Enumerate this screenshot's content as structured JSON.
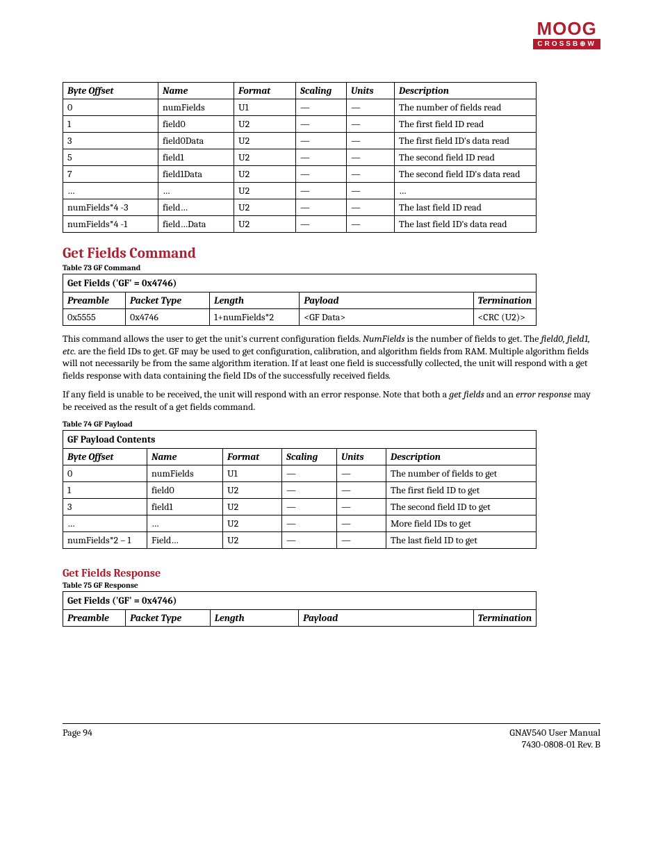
{
  "logo": {
    "top": "MOOG",
    "bottom": "CROSSB⊕W"
  },
  "table1": {
    "headers": [
      "Byte Offset",
      "Name",
      "Format",
      "Scaling",
      "Units",
      "Description"
    ],
    "rows": [
      [
        "0",
        "numFields",
        "U1",
        "—",
        "—",
        "The number of fields read"
      ],
      [
        "1",
        "field0",
        "U2",
        "—",
        "—",
        "The first field ID read"
      ],
      [
        "3",
        "field0Data",
        "U2",
        "—",
        "—",
        "The first field ID's data read"
      ],
      [
        "5",
        "field1",
        "U2",
        "—",
        "—",
        "The second field ID read"
      ],
      [
        "7",
        "field1Data",
        "U2",
        "—",
        "—",
        "The second field ID's data read"
      ],
      [
        "…",
        "…",
        "U2",
        "—",
        "—",
        "…"
      ],
      [
        "numFields*4 -3",
        "field…",
        "U2",
        "—",
        "—",
        "The last field ID read"
      ],
      [
        "numFields*4 -1",
        "field…Data",
        "U2",
        "—",
        "—",
        "The last field ID's data read"
      ]
    ]
  },
  "section1": {
    "title": "Get Fields Command"
  },
  "caption73": "Table 73  GF Command",
  "table2": {
    "title": "Get Fields ('GF' = 0x4746)",
    "headers": [
      "Preamble",
      "Packet Type",
      "Length",
      "Payload",
      "Termination"
    ],
    "row": [
      "0x5555",
      "0x4746",
      "1+numFields*2",
      "<GF Data>",
      "<CRC (U2)>"
    ]
  },
  "para1_a": "This command allows the user to get the unit's current configuration fields.  ",
  "para1_b": "NumFields",
  "para1_c": " is the number of fields to get. The ",
  "para1_d": "field0, field1, etc.",
  "para1_e": " are the field IDs to get.  GF may be used to get configuration, calibration, and algorithm fields from RAM.  Multiple algorithm fields will not necessarily be from the same algorithm iteration.  If at least one field is successfully collected, the unit will respond with a get fields response with data containing the field IDs of the successfully received fields",
  "para1_f": ".",
  "para2_a": "If any field is unable to be received, the unit will respond with an error response.  Note that both a ",
  "para2_b": "get fields",
  "para2_c": " and an ",
  "para2_d": "error response",
  "para2_e": " may be received as the result of a get fields command.",
  "caption74": "Table 74  GF Payload",
  "table3": {
    "title": "GF Payload Contents",
    "headers": [
      "Byte Offset",
      "Name",
      "Format",
      "Scaling",
      "Units",
      "Description"
    ],
    "rows": [
      [
        "0",
        "numFields",
        "U1",
        "—",
        "—",
        "The number of fields to get"
      ],
      [
        "1",
        "field0",
        "U2",
        "—",
        "—",
        "The first field ID to get"
      ],
      [
        "3",
        "field1",
        "U2",
        "—",
        "—",
        "The second field ID to get"
      ],
      [
        "…",
        "…",
        "U2",
        "—",
        "—",
        "More field IDs to get"
      ],
      [
        "numFields*2 – 1",
        "Field…",
        "U2",
        "—",
        "—",
        "The last field ID to get"
      ]
    ]
  },
  "subsection": {
    "title": "Get Fields Response"
  },
  "caption75": "Table 75  GF Response",
  "table4": {
    "title": "Get Fields ('GF' = 0x4746)",
    "headers": [
      "Preamble",
      "Packet Type",
      "Length",
      "Payload",
      "Termination"
    ]
  },
  "footer": {
    "left": "Page 94",
    "right1": "GNAV540 User Manual",
    "right2": "7430-0808-01 Rev. B"
  }
}
